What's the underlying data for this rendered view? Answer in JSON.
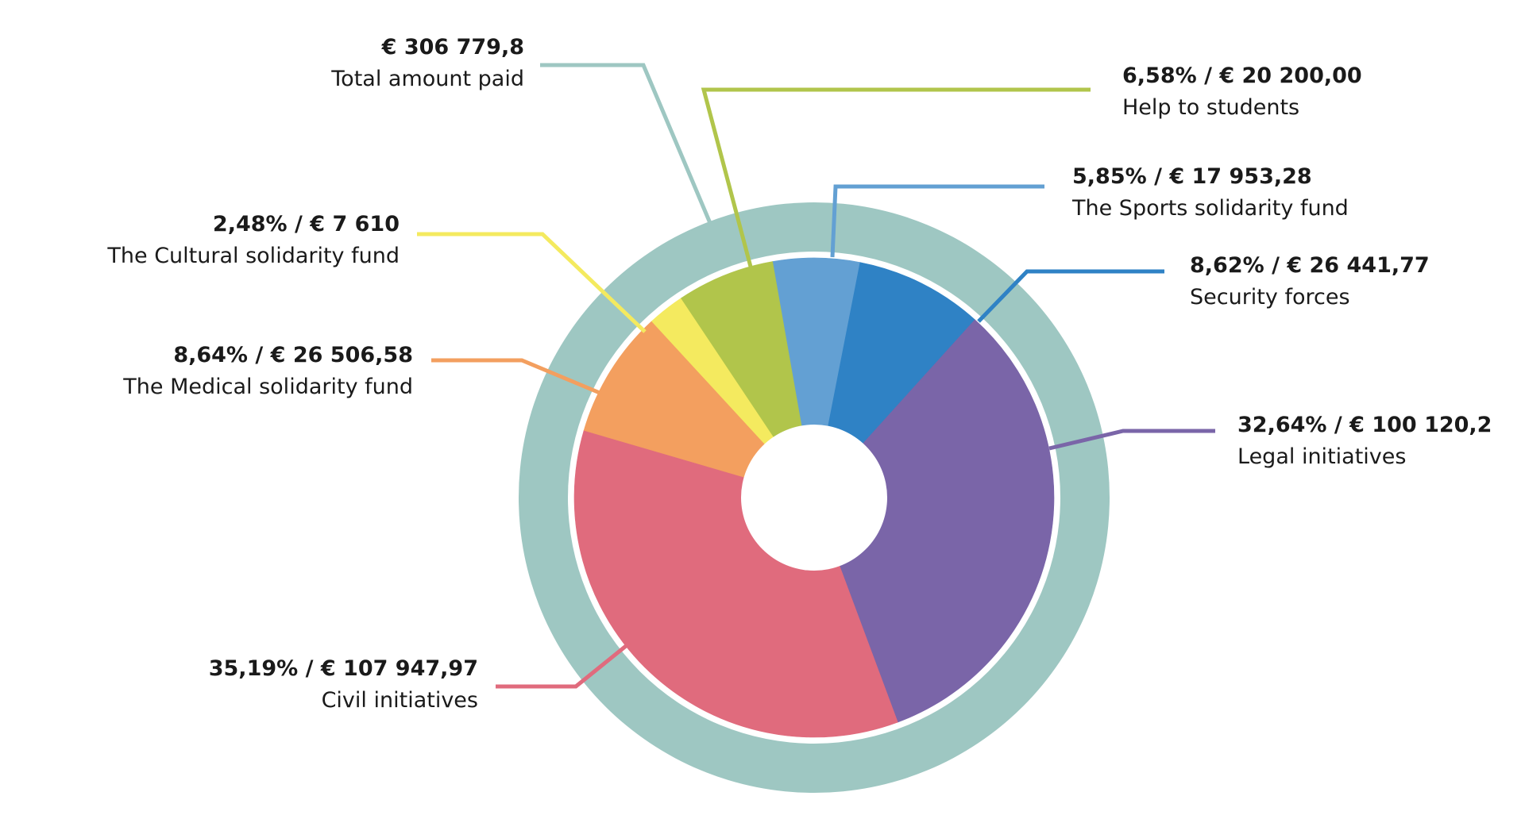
{
  "chart_data": {
    "type": "pie",
    "total": {
      "value_label": "€ 306 779,8",
      "label": "Total amount paid",
      "color": "#9ec7c2"
    },
    "slices": [
      {
        "key": "sports",
        "name": "The Sports solidarity fund",
        "percent": 5.85,
        "value": 17953.28,
        "value_label": "5,85% / € 17 953,28",
        "color": "#63a0d3"
      },
      {
        "key": "security",
        "name": "Security forces",
        "percent": 8.62,
        "value": 26441.77,
        "value_label": "8,62% / € 26 441,77",
        "color": "#2f82c5"
      },
      {
        "key": "legal",
        "name": "Legal initiatives",
        "percent": 32.64,
        "value": 100120.2,
        "value_label": "32,64% / € 100 120,2",
        "color": "#7a65a8"
      },
      {
        "key": "civil",
        "name": "Civil initiatives",
        "percent": 35.19,
        "value": 107947.97,
        "value_label": "35,19% / € 107 947,97",
        "color": "#e06b7d"
      },
      {
        "key": "medical",
        "name": "The Medical solidarity fund",
        "percent": 8.64,
        "value": 26506.58,
        "value_label": "8,64% / € 26 506,58",
        "color": "#f39f5f"
      },
      {
        "key": "cultural",
        "name": "The Cultural solidarity fund",
        "percent": 2.48,
        "value": 7610,
        "value_label": "2,48% / € 7 610",
        "color": "#f4ea5f"
      },
      {
        "key": "students",
        "name": "Help to students",
        "percent": 6.58,
        "value": 20200.0,
        "value_label": "6,58% / € 20 200,00",
        "color": "#b1c54b"
      }
    ]
  }
}
